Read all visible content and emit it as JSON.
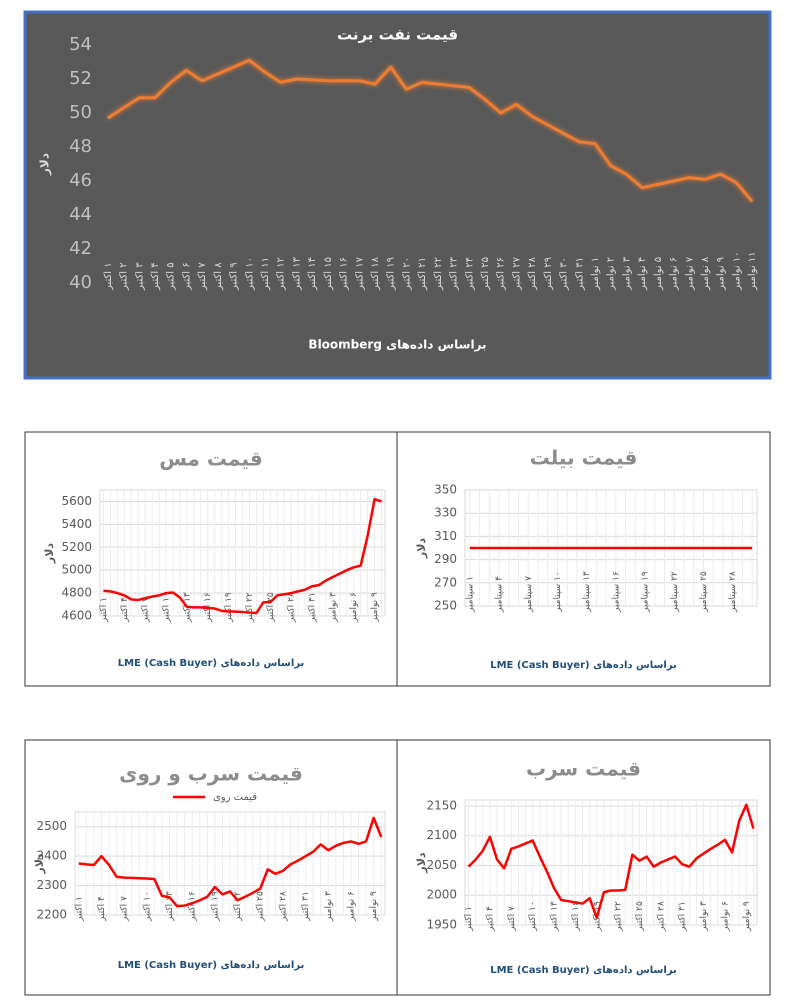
{
  "chart_data": [
    {
      "type": "line",
      "title": "قیمت نفت برنت",
      "y_label": "دلار",
      "source": "براساس داده‌های Bloomberg",
      "categories": [
        "۱ اکتبر",
        "۲ اکتبر",
        "۳ اکتبر",
        "۴ اکتبر",
        "۵ اکتبر",
        "۶ اکتبر",
        "۷ اکتبر",
        "۸ اکتبر",
        "۹ اکتبر",
        "۱۰ اکتبر",
        "۱۱ اکتبر",
        "۱۲ اکتبر",
        "۱۳ اکتبر",
        "۱۴ اکتبر",
        "۱۵ اکتبر",
        "۱۶ اکتبر",
        "۱۷ اکتبر",
        "۱۸ اکتبر",
        "۱۹ اکتبر",
        "۲۰ اکتبر",
        "۲۱ اکتبر",
        "۲۲ اکتبر",
        "۲۳ اکتبر",
        "۲۴ اکتبر",
        "۲۵ اکتبر",
        "۲۶ اکتبر",
        "۲۷ اکتبر",
        "۲۸ اکتبر",
        "۲۹ اکتبر",
        "۳۰ اکتبر",
        "۳۱ اکتبر",
        "۱ نوامبر",
        "۲ نوامبر",
        "۳ نوامبر",
        "۴ نوامبر",
        "۵ نوامبر",
        "۶ نوامبر",
        "۷ نوامبر",
        "۸ نوامبر",
        "۹ نوامبر",
        "۱۰ نوامبر",
        "۱۱ نوامبر"
      ],
      "values": [
        49.7,
        50.3,
        50.9,
        50.9,
        51.8,
        52.5,
        51.9,
        52.3,
        52.7,
        53.1,
        52.4,
        51.8,
        52.0,
        51.95,
        51.9,
        51.9,
        51.9,
        51.7,
        52.7,
        51.4,
        51.8,
        51.7,
        51.6,
        51.5,
        50.8,
        50.0,
        50.5,
        49.8,
        49.3,
        48.8,
        48.3,
        48.2,
        46.9,
        46.4,
        45.6,
        45.8,
        46.0,
        46.2,
        46.1,
        46.4,
        45.9,
        44.8
      ],
      "color": "#ed7d31",
      "ylim": [
        40,
        54
      ],
      "yticks": [
        40,
        42,
        44,
        46,
        48,
        50,
        52,
        54
      ],
      "grid": false
    },
    {
      "type": "line",
      "title": "قیمت مس",
      "y_label": "دلار",
      "source": "براساس داده‌های LME (Cash Buyer)",
      "categories": [
        "۱ اکتبر",
        null,
        null,
        "۴ اکتبر",
        null,
        null,
        "۷ اکتبر",
        null,
        null,
        "۱۰ اکتبر",
        null,
        null,
        "۱۳ اکتبر",
        null,
        null,
        "۱۶ اکتبر",
        null,
        null,
        "۱۹ اکتبر",
        null,
        null,
        "۲۲ اکتبر",
        null,
        null,
        "۲۵ اکتبر",
        null,
        null,
        "۲۸ اکتبر",
        null,
        null,
        "۳۱ اکتبر",
        null,
        null,
        "۳ نوامبر",
        null,
        null,
        "۶ نوامبر",
        null,
        null,
        "۹ نوامبر",
        null
      ],
      "values": [
        4820,
        4815,
        4800,
        4780,
        4745,
        4740,
        4755,
        4770,
        4780,
        4800,
        4805,
        4760,
        4680,
        4675,
        4675,
        4670,
        4665,
        4645,
        4640,
        4638,
        4635,
        4630,
        4625,
        4720,
        4720,
        4780,
        4790,
        4800,
        4815,
        4830,
        4860,
        4870,
        4910,
        4940,
        4970,
        5000,
        5025,
        5040,
        5300,
        5620,
        5600
      ],
      "color": "#ff0000",
      "ylim": [
        4600,
        5700
      ],
      "yticks": [
        4600,
        4800,
        5000,
        5200,
        5400,
        5600
      ],
      "grid": true
    },
    {
      "type": "line",
      "title": "قیمت بیلت",
      "y_label": "دلار",
      "source": "براساس داده‌های LME (Cash Buyer)",
      "categories": [
        "۱ سپتامبر",
        null,
        null,
        "۴ سپتامبر",
        null,
        null,
        "۷ سپتامبر",
        null,
        null,
        "۱۰ سپتامبر",
        null,
        null,
        "۱۳ سپتامبر",
        null,
        null,
        "۱۶ سپتامبر",
        null,
        null,
        "۱۹ سپتامبر",
        null,
        null,
        "۲۲ سپتامبر",
        null,
        null,
        "۲۵ سپتامبر",
        null,
        null,
        "۲۸ سپتامبر",
        null,
        null
      ],
      "values": [
        300,
        300,
        300,
        300,
        300,
        300,
        300,
        300,
        300,
        300,
        300,
        300,
        300,
        300,
        300,
        300,
        300,
        300,
        300,
        300,
        300,
        300,
        300,
        300,
        300,
        300,
        300,
        300,
        300,
        300
      ],
      "color": "#ff0000",
      "ylim": [
        250,
        350
      ],
      "yticks": [
        250,
        270,
        290,
        310,
        330,
        350
      ],
      "grid": true
    },
    {
      "type": "line",
      "title": "قیمت سرب و روی",
      "y_label": "دلار",
      "source": "براساس داده‌های LME (Cash Buyer)",
      "categories": [
        "۱ اکتبر",
        null,
        null,
        "۴ اکتبر",
        null,
        null,
        "۷ اکتبر",
        null,
        null,
        "۱۰ اکتبر",
        null,
        null,
        "۱۳ اکتبر",
        null,
        null,
        "۱۶ اکتبر",
        null,
        null,
        "۱۹ اکتبر",
        null,
        null,
        "۲۲ اکتبر",
        null,
        null,
        "۲۵ اکتبر",
        null,
        null,
        "۲۸ اکتبر",
        null,
        null,
        "۳۱ اکتبر",
        null,
        null,
        "۳ نوامبر",
        null,
        null,
        "۶ نوامبر",
        null,
        null,
        "۹ نوامبر",
        null
      ],
      "series": [
        {
          "name": "قیمت روی",
          "color": "#ff0000",
          "values": [
            2375,
            2372,
            2370,
            2400,
            2370,
            2330,
            2327,
            2326,
            2325,
            2324,
            2322,
            2265,
            2260,
            2230,
            2232,
            2240,
            2250,
            2262,
            2295,
            2270,
            2280,
            2250,
            2262,
            2275,
            2290,
            2355,
            2340,
            2350,
            2372,
            2385,
            2400,
            2415,
            2440,
            2420,
            2435,
            2445,
            2450,
            2442,
            2450,
            2530,
            2465
          ]
        }
      ],
      "legend": "top",
      "ylim": [
        2200,
        2550
      ],
      "yticks": [
        2200,
        2300,
        2400,
        2500
      ],
      "grid": true
    },
    {
      "type": "line",
      "title": "قیمت سرب",
      "y_label": "دلار",
      "source": "براساس داده‌های LME (Cash Buyer)",
      "categories": [
        "۱ اکتبر",
        null,
        null,
        "۴ اکتبر",
        null,
        null,
        "۷ اکتبر",
        null,
        null,
        "۱۰ اکتبر",
        null,
        null,
        "۱۳ اکتبر",
        null,
        null,
        "۱۶ اکتبر",
        null,
        null,
        "۱۹ اکتبر",
        null,
        null,
        "۲۲ اکتبر",
        null,
        null,
        "۲۵ اکتبر",
        null,
        null,
        "۲۸ اکتبر",
        null,
        null,
        "۳۱ اکتبر",
        null,
        null,
        "۳ نوامبر",
        null,
        null,
        "۶ نوامبر",
        null,
        null,
        "۹ نوامبر",
        null
      ],
      "values": [
        2048,
        2060,
        2075,
        2098,
        2060,
        2045,
        2078,
        2082,
        2087,
        2092,
        2065,
        2040,
        2012,
        1992,
        1990,
        1988,
        1986,
        1995,
        1962,
        2005,
        2008,
        2008,
        2009,
        2068,
        2058,
        2065,
        2048,
        2055,
        2060,
        2065,
        2052,
        2048,
        2062,
        2070,
        2078,
        2085,
        2093,
        2072,
        2125,
        2152,
        2112
      ],
      "color": "#ff0000",
      "ylim": [
        1950,
        2160
      ],
      "yticks": [
        1950,
        2000,
        2050,
        2100,
        2150
      ],
      "grid": true
    }
  ]
}
